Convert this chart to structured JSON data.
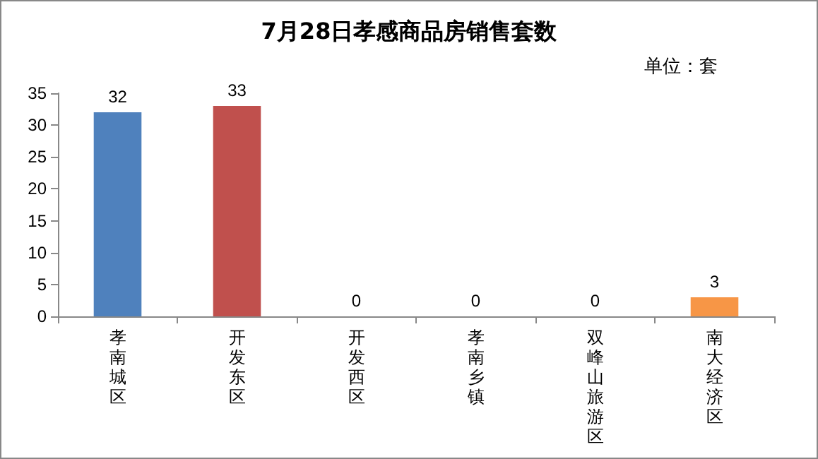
{
  "chart_data": {
    "type": "bar",
    "title": "7月28日孝感商品房销售套数",
    "annotations": [
      "单位：套"
    ],
    "categories": [
      "孝南城区",
      "开发东区",
      "开发西区",
      "孝南乡镇",
      "双峰山旅游区",
      "南大经济区"
    ],
    "values": [
      32,
      33,
      0,
      0,
      0,
      3
    ],
    "colors": [
      "#4f81bd",
      "#c0504d",
      "#9bbb59",
      "#8064a2",
      "#4bacc6",
      "#f79646"
    ],
    "ylim": [
      0,
      35
    ],
    "yticks": [
      0,
      5,
      10,
      15,
      20,
      25,
      30,
      35
    ],
    "grid": false,
    "data_labels": true
  }
}
